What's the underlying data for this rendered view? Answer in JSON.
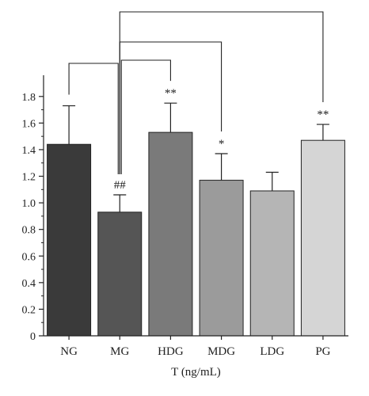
{
  "chart_data": {
    "type": "bar",
    "title": "",
    "xlabel": "T (ng/mL)",
    "ylabel": "",
    "ylim": [
      0,
      1.9
    ],
    "yticks": [
      0,
      0.2,
      0.4,
      0.6,
      0.8,
      1.0,
      1.2,
      1.4,
      1.6,
      1.8
    ],
    "ytick_labels": [
      "0",
      "0.2",
      "0.4",
      "0.6",
      "0.8",
      "1.0",
      "1.2",
      "1.4",
      "1.6",
      "1.8"
    ],
    "grid": false,
    "categories": [
      "NG",
      "MG",
      "HDG",
      "MDG",
      "LDG",
      "PG"
    ],
    "values": [
      1.44,
      0.93,
      1.53,
      1.17,
      1.09,
      1.47
    ],
    "errors": [
      0.29,
      0.13,
      0.22,
      0.2,
      0.14,
      0.12
    ],
    "colors": [
      "#3a3a3a",
      "#555555",
      "#7a7a7a",
      "#9b9b9b",
      "#b5b5b5",
      "#d5d5d5"
    ],
    "significance": [
      "",
      "##",
      "**",
      "*",
      "",
      "**"
    ],
    "comparison_brackets": [
      {
        "from": "MG",
        "to": "NG"
      },
      {
        "from": "MG",
        "to": "HDG"
      },
      {
        "from": "MG",
        "to": "MDG"
      },
      {
        "from": "MG",
        "to": "PG"
      }
    ]
  }
}
